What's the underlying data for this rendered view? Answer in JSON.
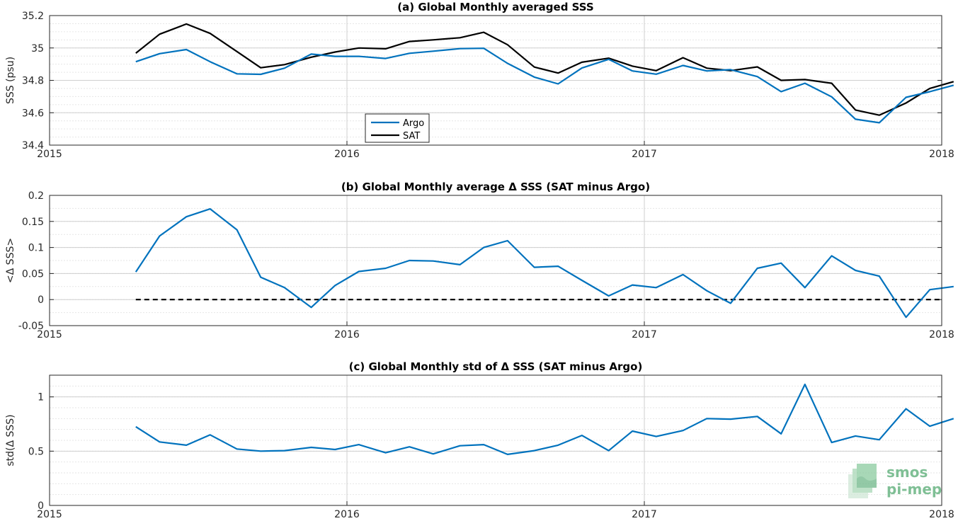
{
  "colors": {
    "argo": "#0072bd",
    "sat": "#000000",
    "logo": "#7fbf95"
  },
  "logo": {
    "line1": "smos",
    "line2": "pi-mep"
  },
  "chart_data": [
    {
      "type": "line",
      "title": "(a) Global Monthly averaged SSS",
      "ylabel": "SSS (psu)",
      "xlabel": "",
      "xlim": [
        2015,
        2018
      ],
      "ylim": [
        34.4,
        35.2
      ],
      "xticks": [
        2015,
        2016,
        2017,
        2018
      ],
      "xtick_labels": [
        "2015",
        "2016",
        "2017",
        "2018"
      ],
      "yticks": [
        34.4,
        34.6,
        34.8,
        35,
        35.2
      ],
      "ytick_labels": [
        "34.4",
        "34.6",
        "34.8",
        "35",
        "35.2"
      ],
      "grid": true,
      "legend": {
        "placement": "lower-left",
        "entries": [
          "Argo",
          "SAT"
        ]
      },
      "x": [
        2015.29,
        2015.37,
        2015.46,
        2015.54,
        2015.63,
        2015.71,
        2015.79,
        2015.88,
        2015.96,
        2016.04,
        2016.13,
        2016.21,
        2016.29,
        2016.38,
        2016.46,
        2016.54,
        2016.63,
        2016.71,
        2016.79,
        2016.88,
        2016.96,
        2017.04,
        2017.13,
        2017.21,
        2017.29,
        2017.38,
        2017.46,
        2017.54,
        2017.63,
        2017.71,
        2017.79,
        2017.88,
        2017.96,
        2018.04
      ],
      "series": [
        {
          "name": "Argo",
          "color": "#0072bd",
          "values": [
            34.915,
            34.965,
            34.99,
            34.915,
            34.84,
            34.837,
            34.875,
            34.962,
            34.948,
            34.948,
            34.935,
            34.967,
            34.98,
            34.996,
            34.998,
            34.905,
            34.82,
            34.778,
            34.876,
            34.93,
            34.858,
            34.838,
            34.892,
            34.858,
            34.866,
            34.823,
            34.73,
            34.782,
            34.698,
            34.56,
            34.538,
            34.695,
            34.73,
            34.77
          ]
        },
        {
          "name": "SAT",
          "color": "#000000",
          "values": [
            34.968,
            35.085,
            35.148,
            35.09,
            34.978,
            34.878,
            34.897,
            34.943,
            34.975,
            35.0,
            34.995,
            35.04,
            35.05,
            35.063,
            35.097,
            35.02,
            34.882,
            34.845,
            34.912,
            34.937,
            34.888,
            34.86,
            34.94,
            34.875,
            34.86,
            34.883,
            34.8,
            34.805,
            34.782,
            34.617,
            34.585,
            34.66,
            34.75,
            34.792
          ]
        }
      ]
    },
    {
      "type": "line",
      "title": "(b) Global Monthly average Δ SSS (SAT minus Argo)",
      "ylabel": "<Δ SSS>",
      "xlabel": "",
      "xlim": [
        2015,
        2018
      ],
      "ylim": [
        -0.05,
        0.2
      ],
      "xticks": [
        2015,
        2016,
        2017,
        2018
      ],
      "xtick_labels": [
        "2015",
        "2016",
        "2017",
        "2018"
      ],
      "yticks": [
        -0.05,
        0,
        0.05,
        0.1,
        0.15,
        0.2
      ],
      "ytick_labels": [
        "-0.05",
        "0",
        "0.05",
        "0.1",
        "0.15",
        "0.2"
      ],
      "grid": true,
      "reference_line": {
        "y": 0,
        "style": "dashed",
        "color": "#000000",
        "x_from": 2015.29,
        "x_to": 2018.0
      },
      "x": [
        2015.29,
        2015.37,
        2015.46,
        2015.54,
        2015.63,
        2015.71,
        2015.79,
        2015.88,
        2015.96,
        2016.04,
        2016.13,
        2016.21,
        2016.29,
        2016.38,
        2016.46,
        2016.54,
        2016.63,
        2016.71,
        2016.79,
        2016.88,
        2016.96,
        2017.04,
        2017.13,
        2017.21,
        2017.29,
        2017.38,
        2017.46,
        2017.54,
        2017.63,
        2017.71,
        2017.79,
        2017.88,
        2017.96,
        2018.04
      ],
      "series": [
        {
          "color": "#0072bd",
          "values": [
            0.053,
            0.122,
            0.159,
            0.174,
            0.134,
            0.043,
            0.023,
            -0.015,
            0.027,
            0.054,
            0.06,
            0.075,
            0.074,
            0.067,
            0.1,
            0.113,
            0.062,
            0.064,
            0.037,
            0.007,
            0.028,
            0.023,
            0.048,
            0.017,
            -0.007,
            0.06,
            0.07,
            0.023,
            0.084,
            0.056,
            0.045,
            -0.034,
            0.019,
            0.025
          ]
        }
      ]
    },
    {
      "type": "line",
      "title": "(c) Global Monthly std of Δ SSS (SAT minus Argo)",
      "ylabel": "std(Δ SSS)",
      "xlabel": "",
      "xlim": [
        2015,
        2018
      ],
      "ylim": [
        0,
        1.2
      ],
      "xticks": [
        2015,
        2016,
        2017,
        2018
      ],
      "xtick_labels": [
        "2015",
        "2016",
        "2017",
        "2018"
      ],
      "yticks": [
        0,
        0.5,
        1
      ],
      "ytick_labels": [
        "0",
        "0.5",
        "1"
      ],
      "grid": true,
      "x": [
        2015.29,
        2015.37,
        2015.46,
        2015.54,
        2015.63,
        2015.71,
        2015.79,
        2015.88,
        2015.96,
        2016.04,
        2016.13,
        2016.21,
        2016.29,
        2016.38,
        2016.46,
        2016.54,
        2016.63,
        2016.71,
        2016.79,
        2016.88,
        2016.96,
        2017.04,
        2017.13,
        2017.21,
        2017.29,
        2017.38,
        2017.46,
        2017.54,
        2017.63,
        2017.71,
        2017.79,
        2017.88,
        2017.96,
        2018.04
      ],
      "series": [
        {
          "color": "#0072bd",
          "values": [
            0.725,
            0.585,
            0.555,
            0.65,
            0.52,
            0.5,
            0.505,
            0.535,
            0.515,
            0.56,
            0.485,
            0.54,
            0.475,
            0.55,
            0.56,
            0.47,
            0.505,
            0.555,
            0.645,
            0.505,
            0.685,
            0.635,
            0.69,
            0.8,
            0.795,
            0.82,
            0.66,
            1.115,
            0.58,
            0.64,
            0.605,
            0.89,
            0.73,
            0.8
          ]
        }
      ]
    }
  ]
}
